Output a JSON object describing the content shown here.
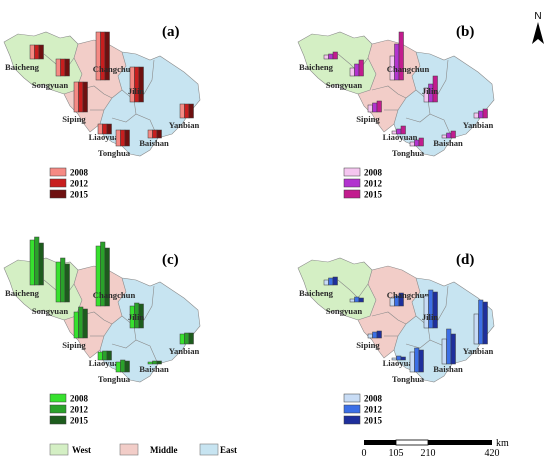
{
  "panels": [
    {
      "title": "(a)",
      "years": [
        "2008",
        "2012",
        "2015"
      ],
      "colors": [
        "#f58a84",
        "#c81e1e",
        "#6e1010"
      ],
      "cities": [
        {
          "name": "Baicheng",
          "values": [
            14,
            14,
            14
          ]
        },
        {
          "name": "Songyuan",
          "values": [
            17,
            17,
            17
          ]
        },
        {
          "name": "Changchun",
          "values": [
            48,
            48,
            48
          ]
        },
        {
          "name": "Siping",
          "values": [
            30,
            30,
            30
          ]
        },
        {
          "name": "Jilin",
          "values": [
            35,
            35,
            35
          ]
        },
        {
          "name": "Liaoyuan",
          "values": [
            10,
            10,
            10
          ]
        },
        {
          "name": "Tonghua",
          "values": [
            16,
            16,
            16
          ]
        },
        {
          "name": "Baishan",
          "values": [
            8,
            8,
            8
          ]
        },
        {
          "name": "Yanbian",
          "values": [
            14,
            14,
            14
          ]
        }
      ]
    },
    {
      "title": "(b)",
      "years": [
        "2008",
        "2012",
        "2015"
      ],
      "colors": [
        "#f5c6f0",
        "#b233cf",
        "#c21c8e"
      ],
      "cities": [
        {
          "name": "Baicheng",
          "values": [
            4,
            5,
            7
          ]
        },
        {
          "name": "Songyuan",
          "values": [
            8,
            12,
            16
          ]
        },
        {
          "name": "Changchun",
          "values": [
            24,
            36,
            48
          ]
        },
        {
          "name": "Siping",
          "values": [
            7,
            9,
            11
          ]
        },
        {
          "name": "Jilin",
          "values": [
            14,
            18,
            26
          ]
        },
        {
          "name": "Liaoyuan",
          "values": [
            3,
            5,
            8
          ]
        },
        {
          "name": "Tonghua",
          "values": [
            4,
            6,
            8
          ]
        },
        {
          "name": "Baishan",
          "values": [
            3,
            5,
            7
          ]
        },
        {
          "name": "Yanbian",
          "values": [
            5,
            7,
            9
          ]
        }
      ]
    },
    {
      "title": "(c)",
      "years": [
        "2008",
        "2012",
        "2015"
      ],
      "colors": [
        "#37e12e",
        "#2aa22a",
        "#1d5c1d"
      ],
      "cities": [
        {
          "name": "Baicheng",
          "values": [
            45,
            48,
            42
          ]
        },
        {
          "name": "Songyuan",
          "values": [
            40,
            44,
            38
          ]
        },
        {
          "name": "Changchun",
          "values": [
            60,
            64,
            58
          ]
        },
        {
          "name": "Siping",
          "values": [
            26,
            31,
            29
          ]
        },
        {
          "name": "Jilin",
          "values": [
            22,
            25,
            24
          ]
        },
        {
          "name": "Liaoyuan",
          "values": [
            8,
            9,
            9
          ]
        },
        {
          "name": "Tonghua",
          "values": [
            10,
            12,
            11
          ]
        },
        {
          "name": "Baishan",
          "values": [
            2,
            3,
            3
          ]
        },
        {
          "name": "Yanbian",
          "values": [
            10,
            11,
            11
          ]
        }
      ]
    },
    {
      "title": "(d)",
      "years": [
        "2008",
        "2012",
        "2015"
      ],
      "colors": [
        "#c8dcf5",
        "#3c6fe6",
        "#1e2f9c"
      ],
      "cities": [
        {
          "name": "Baicheng",
          "values": [
            5,
            7,
            8
          ]
        },
        {
          "name": "Songyuan",
          "values": [
            3,
            5,
            4
          ]
        },
        {
          "name": "Changchun",
          "values": [
            8,
            10,
            13
          ]
        },
        {
          "name": "Siping",
          "values": [
            4,
            6,
            7
          ]
        },
        {
          "name": "Jilin",
          "values": [
            32,
            38,
            36
          ]
        },
        {
          "name": "Liaoyuan",
          "values": [
            2,
            4,
            3
          ]
        },
        {
          "name": "Tonghua",
          "values": [
            20,
            24,
            22
          ]
        },
        {
          "name": "Baishan",
          "values": [
            25,
            35,
            30
          ]
        },
        {
          "name": "Yanbian",
          "values": [
            30,
            44,
            42
          ]
        }
      ]
    }
  ],
  "regions": [
    {
      "name": "West",
      "color": "#d4efc4"
    },
    {
      "name": "Middle",
      "color": "#f2cdc8"
    },
    {
      "name": "East",
      "color": "#c7e4f1"
    }
  ],
  "scalebar": {
    "unit": "km",
    "ticks": [
      "0",
      "105",
      "210",
      "420"
    ]
  },
  "north": {
    "label": "N"
  }
}
